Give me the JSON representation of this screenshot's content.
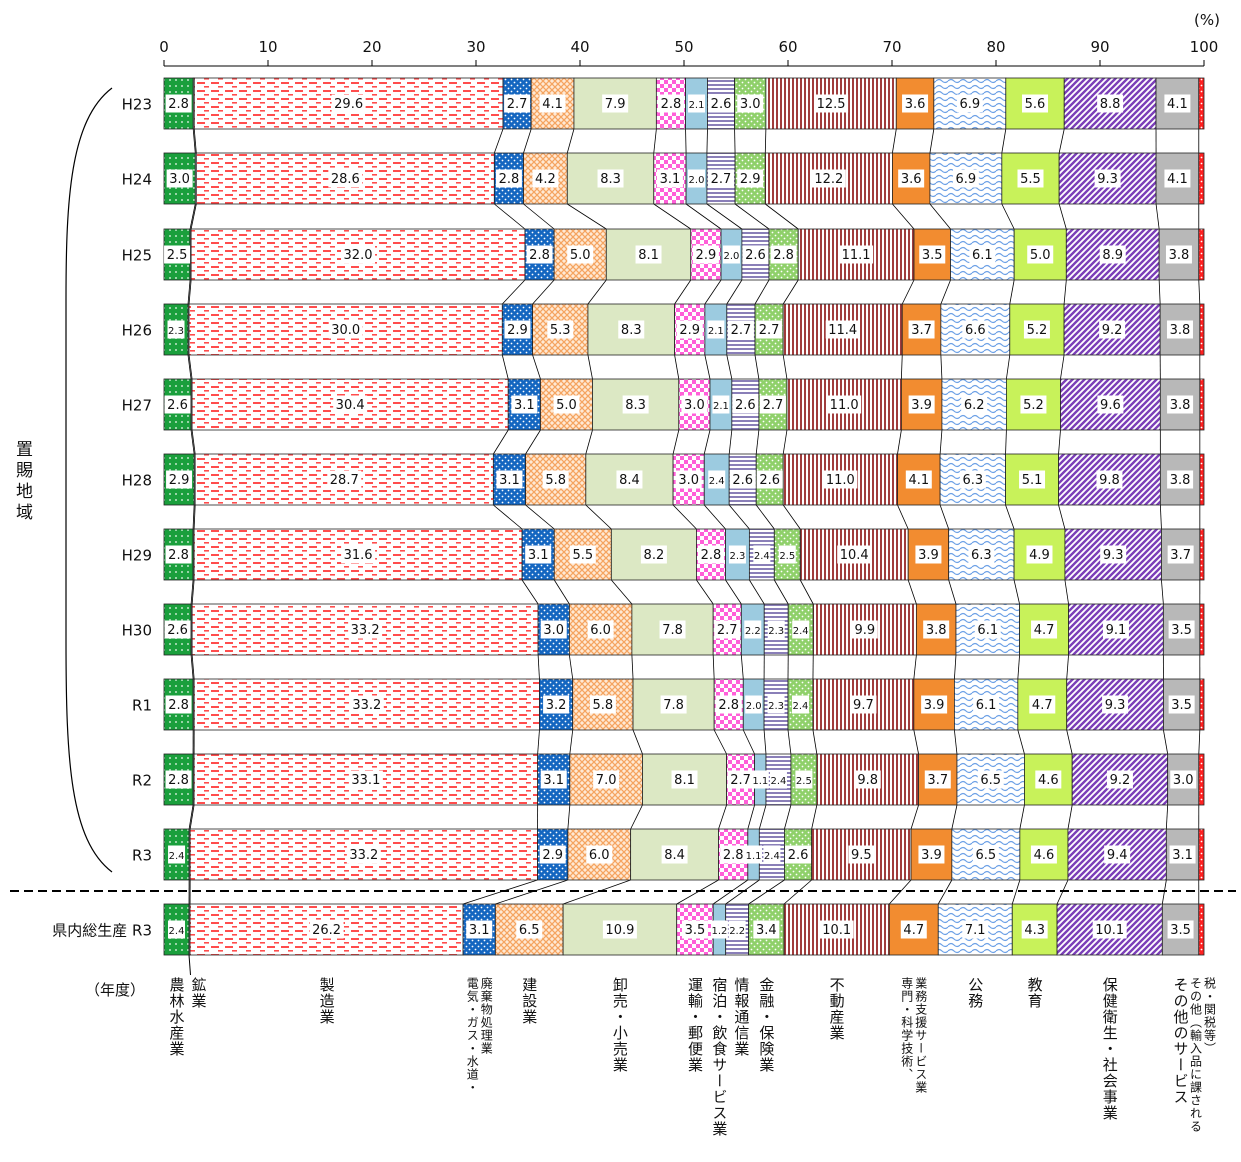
{
  "chart_data": {
    "type": "bar",
    "orientation": "horizontal",
    "stacked": true,
    "normalized": true,
    "unit": "(%)",
    "x_ticks": [
      "0",
      "10",
      "20",
      "30",
      "40",
      "50",
      "60",
      "70",
      "80",
      "90",
      "100"
    ],
    "xlim": [
      0,
      100
    ],
    "year_axis_label": "（年度）",
    "group_label": "置賜地域",
    "categories": [
      "H23",
      "H24",
      "H25",
      "H26",
      "H27",
      "H28",
      "H29",
      "H30",
      "R1",
      "R2",
      "R3",
      "県内総生産 R3"
    ],
    "series": [
      {
        "name": "農林水産業",
        "color": "#1a9f3c",
        "pattern": "grid",
        "values": [
          2.8,
          3.0,
          2.5,
          2.3,
          2.6,
          2.9,
          2.8,
          2.6,
          2.8,
          2.8,
          2.4,
          2.4
        ]
      },
      {
        "name": "鉱業",
        "color": "#ffffff",
        "pattern": "none",
        "values": [
          0.1,
          0.1,
          0.1,
          0.1,
          0.1,
          0.1,
          0.1,
          0.1,
          0.1,
          0.1,
          0.1,
          0.1
        ]
      },
      {
        "name": "製造業",
        "color": "#ff4d4d",
        "pattern": "dashes",
        "values": [
          29.6,
          28.6,
          32.0,
          30.0,
          30.4,
          28.7,
          31.6,
          33.2,
          33.2,
          33.1,
          33.2,
          26.2
        ]
      },
      {
        "name": "電気・ガス・水道・廃棄物処理業",
        "color": "#1466c0",
        "pattern": "dots",
        "values": [
          2.7,
          2.8,
          2.8,
          2.9,
          3.1,
          3.1,
          3.1,
          3.0,
          3.2,
          3.1,
          2.9,
          3.1
        ]
      },
      {
        "name": "建設業",
        "color": "#f5a460",
        "pattern": "cross",
        "values": [
          4.1,
          4.2,
          5.0,
          5.3,
          5.0,
          5.8,
          5.5,
          6.0,
          5.8,
          7.0,
          6.0,
          6.5
        ]
      },
      {
        "name": "卸売・小売業",
        "color": "#dce8c4",
        "pattern": "none",
        "values": [
          7.9,
          8.3,
          8.1,
          8.3,
          8.3,
          8.4,
          8.2,
          7.8,
          7.8,
          8.1,
          8.4,
          10.9
        ]
      },
      {
        "name": "運輸・郵便業",
        "color": "#ff5fd8",
        "pattern": "check",
        "values": [
          2.8,
          3.1,
          2.9,
          2.9,
          3.0,
          3.0,
          2.8,
          2.7,
          2.8,
          2.7,
          2.8,
          3.5
        ]
      },
      {
        "name": "宿泊・飲食サービス業",
        "color": "#9ccbe0",
        "pattern": "none",
        "values": [
          2.1,
          2.0,
          2.0,
          2.1,
          2.1,
          2.4,
          2.3,
          2.2,
          2.0,
          1.1,
          1.1,
          1.2
        ]
      },
      {
        "name": "情報通信業",
        "color": "#8a7fb8",
        "pattern": "hlines",
        "values": [
          2.6,
          2.7,
          2.6,
          2.7,
          2.6,
          2.6,
          2.4,
          2.3,
          2.3,
          2.4,
          2.4,
          2.2
        ]
      },
      {
        "name": "金融・保険業",
        "color": "#8fd06a",
        "pattern": "dots",
        "values": [
          3.0,
          2.9,
          2.8,
          2.7,
          2.7,
          2.6,
          2.5,
          2.4,
          2.4,
          2.5,
          2.6,
          3.4
        ]
      },
      {
        "name": "不動産業",
        "color": "#a03c3c",
        "pattern": "vlines",
        "values": [
          12.5,
          12.2,
          11.1,
          11.4,
          11.0,
          11.0,
          10.4,
          9.9,
          9.7,
          9.8,
          9.5,
          10.1
        ]
      },
      {
        "name": "専門・科学技術、業務支援サービス業",
        "color": "#f28c30",
        "pattern": "none",
        "values": [
          3.6,
          3.6,
          3.5,
          3.7,
          3.9,
          4.1,
          3.9,
          3.8,
          3.9,
          3.7,
          3.9,
          4.7
        ]
      },
      {
        "name": "公務",
        "color": "#6ca0e6",
        "pattern": "wave",
        "values": [
          6.9,
          6.9,
          6.1,
          6.6,
          6.2,
          6.3,
          6.3,
          6.1,
          6.1,
          6.5,
          6.5,
          7.1
        ]
      },
      {
        "name": "教育",
        "color": "#c8f25a",
        "pattern": "none",
        "values": [
          5.6,
          5.5,
          5.0,
          5.2,
          5.2,
          5.1,
          4.9,
          4.7,
          4.7,
          4.6,
          4.6,
          4.3
        ]
      },
      {
        "name": "保健衛生・社会事業",
        "color": "#7b3fb8",
        "pattern": "diag",
        "values": [
          8.8,
          9.3,
          8.9,
          9.2,
          9.6,
          9.8,
          9.3,
          9.1,
          9.3,
          9.2,
          9.4,
          10.1
        ]
      },
      {
        "name": "その他のサービス",
        "color": "#b8b8b8",
        "pattern": "none",
        "values": [
          4.1,
          4.1,
          3.8,
          3.8,
          3.8,
          3.8,
          3.7,
          3.5,
          3.5,
          3.0,
          3.1,
          3.5
        ]
      },
      {
        "name": "その他（輸入品に課される税・関税等）",
        "color": "#ff2020",
        "pattern": "dots",
        "values": [
          0.5,
          0.5,
          0.5,
          0.4,
          0.4,
          0.4,
          0.4,
          0.4,
          0.4,
          0.5,
          0.5,
          0.5
        ]
      }
    ],
    "bar_labels": [
      [
        "2.8",
        "",
        "29.6",
        "2.7",
        "4.1",
        "7.9",
        "2.8",
        "2.1",
        "2.6",
        "3.0",
        "12.5",
        "3.6",
        "6.9",
        "5.6",
        "8.8",
        "4.1",
        ""
      ],
      [
        "3.0",
        "",
        "28.6",
        "2.8",
        "4.2",
        "8.3",
        "3.1",
        "2.0",
        "2.7",
        "2.9",
        "12.2",
        "3.6",
        "6.9",
        "5.5",
        "9.3",
        "4.1",
        ""
      ],
      [
        "2.5",
        "",
        "32.0",
        "2.8",
        "5.0",
        "8.1",
        "2.9",
        "2.0",
        "2.6",
        "2.8",
        "11.1",
        "3.5",
        "6.1",
        "5.0",
        "8.9",
        "3.8",
        ""
      ],
      [
        "2.3",
        "",
        "30.0",
        "2.9",
        "5.3",
        "8.3",
        "2.9",
        "2.1",
        "2.7",
        "2.7",
        "11.4",
        "3.7",
        "6.6",
        "5.2",
        "9.2",
        "3.8",
        ""
      ],
      [
        "2.6",
        "",
        "30.4",
        "3.1",
        "5.0",
        "8.3",
        "3.0",
        "2.1",
        "2.6",
        "2.7",
        "11.0",
        "3.9",
        "6.2",
        "5.2",
        "9.6",
        "3.8",
        ""
      ],
      [
        "2.9",
        "",
        "28.7",
        "3.1",
        "5.8",
        "8.4",
        "3.0",
        "2.4",
        "2.6",
        "2.6",
        "11.0",
        "4.1",
        "6.3",
        "5.1",
        "9.8",
        "3.8",
        ""
      ],
      [
        "2.8",
        "",
        "31.6",
        "3.1",
        "5.5",
        "8.2",
        "2.8",
        "2.3",
        "2.4",
        "2.5",
        "10.4",
        "3.9",
        "6.3",
        "4.9",
        "9.3",
        "3.7",
        ""
      ],
      [
        "2.6",
        "",
        "33.2",
        "3.0",
        "6.0",
        "7.8",
        "2.7",
        "2.2",
        "2.3",
        "2.4",
        "9.9",
        "3.8",
        "6.1",
        "4.7",
        "9.1",
        "3.5",
        ""
      ],
      [
        "2.8",
        "",
        "33.2",
        "3.2",
        "5.8",
        "7.8",
        "2.8",
        "2.0",
        "2.3",
        "2.4",
        "9.7",
        "3.9",
        "6.1",
        "4.7",
        "9.3",
        "3.5",
        ""
      ],
      [
        "2.8",
        "",
        "33.1",
        "3.1",
        "7.0",
        "8.1",
        "2.7",
        "1.1",
        "2.4",
        "2.5",
        "9.8",
        "3.7",
        "6.5",
        "4.6",
        "9.2",
        "3.0",
        ""
      ],
      [
        "2.4",
        "",
        "33.2",
        "2.9",
        "6.0",
        "8.4",
        "2.8",
        "1.1",
        "2.4",
        "2.6",
        "9.5",
        "3.9",
        "6.5",
        "4.6",
        "9.4",
        "3.1",
        ""
      ],
      [
        "2.4",
        "",
        "26.2",
        "3.1",
        "6.5",
        "10.9",
        "3.5",
        "1.2",
        "2.2",
        "3.4",
        "10.1",
        "4.7",
        "7.1",
        "4.3",
        "10.1",
        "3.5",
        ""
      ]
    ],
    "legend_placement": "bottom, vertical text under segments",
    "legend_lines": [
      [
        "農林水産業"
      ],
      [
        "鉱業"
      ],
      [
        "製造業"
      ],
      [
        "電気・ガス・水道・",
        "廃棄物処理業"
      ],
      [
        "建設業"
      ],
      [
        "卸売・小売業"
      ],
      [
        "運輸・郵便業"
      ],
      [
        "宿泊・飲食サービス業"
      ],
      [
        "情報通信業"
      ],
      [
        "金融・保険業"
      ],
      [
        "不動産業"
      ],
      [
        "専門・科学技術、",
        "業務支援サービス業"
      ],
      [
        "公務"
      ],
      [
        "教育"
      ],
      [
        "保健衛生・社会事業"
      ],
      [
        "その他のサービス"
      ],
      [
        "その他（輸入品に課される",
        "税・関税等）"
      ]
    ]
  }
}
